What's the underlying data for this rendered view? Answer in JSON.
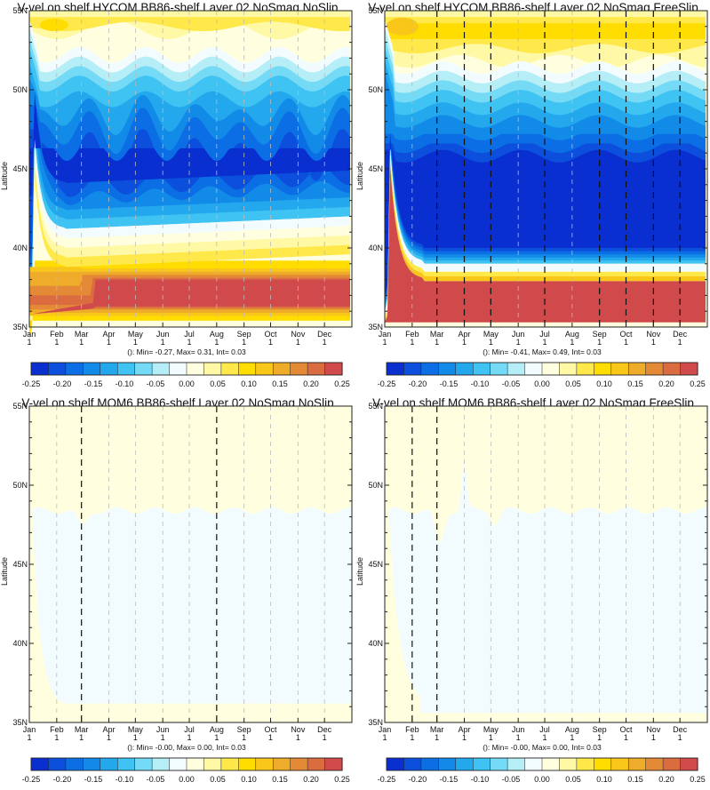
{
  "colorbar": {
    "labels": [
      "-0.25",
      "-0.20",
      "-0.15",
      "-0.10",
      "-0.05",
      "0.00",
      "0.05",
      "0.10",
      "0.15",
      "0.20",
      "0.25"
    ],
    "colors": [
      "#0a2fd0",
      "#0b4fdc",
      "#0c6ee4",
      "#128ae8",
      "#23a8ee",
      "#3fc3f2",
      "#74daf5",
      "#b6eef8",
      "#f2fcff",
      "#ffffe0",
      "#fff9a6",
      "#ffe94a",
      "#ffdd00",
      "#f9c61a",
      "#efac2a",
      "#e48a36",
      "#da6c40",
      "#d04a4c"
    ]
  },
  "axes": {
    "ylabel": "Latitude",
    "yticks": [
      "35N",
      "40N",
      "45N",
      "50N",
      "55N"
    ],
    "months": [
      "Jan",
      "Feb",
      "Mar",
      "Apr",
      "May",
      "Jun",
      "Jul",
      "Aug",
      "Sep",
      "Oct",
      "Nov",
      "Dec"
    ],
    "day": "1"
  },
  "chart_data": [
    {
      "type": "heatmap",
      "title": "V-vel on shelf  HYCOM BB86-shelf Layer 02 NoSmag NoSlip",
      "stats": "(): Min= -0.27, Max= 0.31, Int= 0.03",
      "xlabel": "",
      "ylabel": "Latitude",
      "ylim": [
        35,
        55
      ],
      "zlim": [
        -0.25,
        0.25
      ],
      "summary": [
        {
          "lat_range": [
            52.5,
            55
          ],
          "value": 0.06
        },
        {
          "lat_range": [
            41,
            51
          ],
          "value": -0.2
        },
        {
          "lat_range": [
            35.5,
            38.5
          ],
          "value": 0.25
        }
      ],
      "dashed_months": []
    },
    {
      "type": "heatmap",
      "title": "V-vel on shelf HYCOM BB86-shelf Layer 02 NoSmag FreeSlip",
      "stats": "(): Min= -0.41, Max= 0.49, Int= 0.03",
      "xlabel": "",
      "ylabel": "Latitude",
      "ylim": [
        35,
        55
      ],
      "zlim": [
        -0.25,
        0.25
      ],
      "summary": [
        {
          "lat_range": [
            52,
            55
          ],
          "value": 0.08
        },
        {
          "lat_range": [
            39,
            50
          ],
          "value": -0.25
        },
        {
          "lat_range": [
            35.3,
            38.2
          ],
          "value": 0.25
        }
      ],
      "dashed_months": [
        2,
        3,
        4,
        6,
        8,
        9,
        10,
        11
      ]
    },
    {
      "type": "heatmap",
      "title": "V-vel on shelf MOM6 BB86-shelf Layer 02 NoSmag NoSlip",
      "stats": "(): Min= -0.00, Max= 0.00, Int= 0.03",
      "xlabel": "",
      "ylabel": "Latitude",
      "ylim": [
        35,
        55
      ],
      "zlim": [
        -0.25,
        0.25
      ],
      "summary": [
        {
          "lat_range": [
            48.5,
            55
          ],
          "value": 0.0
        },
        {
          "lat_range": [
            36,
            48.5
          ],
          "value": -0.0
        }
      ],
      "dashed_months": [
        2,
        7
      ]
    },
    {
      "type": "heatmap",
      "title": "V-vel on shelf MOM6 BB86-shelf Layer 02 NoSmag FreeSlip",
      "stats": "(): Min= -0.00, Max= 0.00, Int= 0.03",
      "xlabel": "",
      "ylabel": "Latitude",
      "ylim": [
        35,
        55
      ],
      "zlim": [
        -0.25,
        0.25
      ],
      "summary": [
        {
          "lat_range": [
            48.5,
            55
          ],
          "value": 0.0
        },
        {
          "lat_range": [
            36,
            48.5
          ],
          "value": -0.0
        }
      ],
      "dashed_months": [
        1,
        2
      ]
    }
  ]
}
